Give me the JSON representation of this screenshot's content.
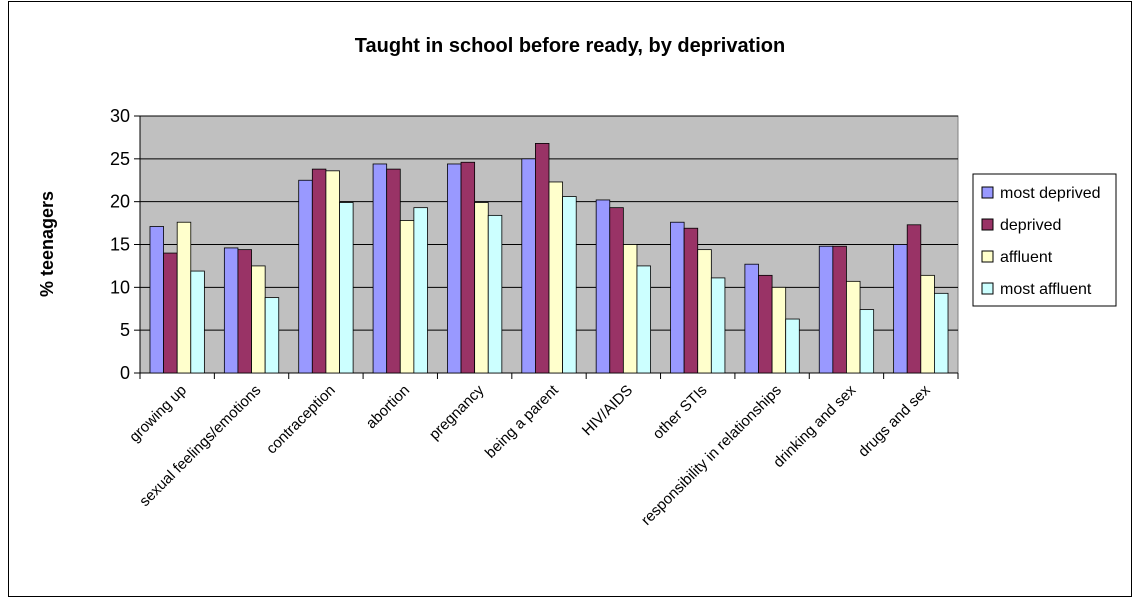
{
  "chart_data": {
    "type": "bar",
    "title": "Taught in school before ready, by deprivation",
    "xlabel": "",
    "ylabel": "% teenagers",
    "ylim": [
      0,
      30
    ],
    "yticks": [
      0,
      5,
      10,
      15,
      20,
      25,
      30
    ],
    "grid": true,
    "legend_position": "right",
    "categories": [
      "growing up",
      "sexual feelings/emotions",
      "contraception",
      "abortion",
      "pregnancy",
      "being a parent",
      "HIV/AIDS",
      "other STIs",
      "responsibility in relationships",
      "drinking and sex",
      "drugs and sex"
    ],
    "series": [
      {
        "name": "most deprived",
        "color": "#9999ff",
        "values": [
          17.1,
          14.6,
          22.5,
          24.4,
          24.4,
          25.0,
          20.2,
          17.6,
          12.7,
          14.8,
          15.0
        ]
      },
      {
        "name": "deprived",
        "color": "#993366",
        "values": [
          14.0,
          14.4,
          23.8,
          23.8,
          24.6,
          26.8,
          19.3,
          16.9,
          11.4,
          14.8,
          17.3
        ]
      },
      {
        "name": "affluent",
        "color": "#ffffcc",
        "values": [
          17.6,
          12.5,
          23.6,
          17.8,
          19.9,
          22.3,
          15.0,
          14.4,
          10.0,
          10.7,
          11.4
        ]
      },
      {
        "name": "most affluent",
        "color": "#ccffff",
        "values": [
          11.9,
          8.8,
          19.9,
          19.3,
          18.4,
          20.6,
          12.5,
          11.1,
          6.3,
          7.4,
          9.3
        ]
      }
    ],
    "plot_background": "#c0c0c0"
  }
}
